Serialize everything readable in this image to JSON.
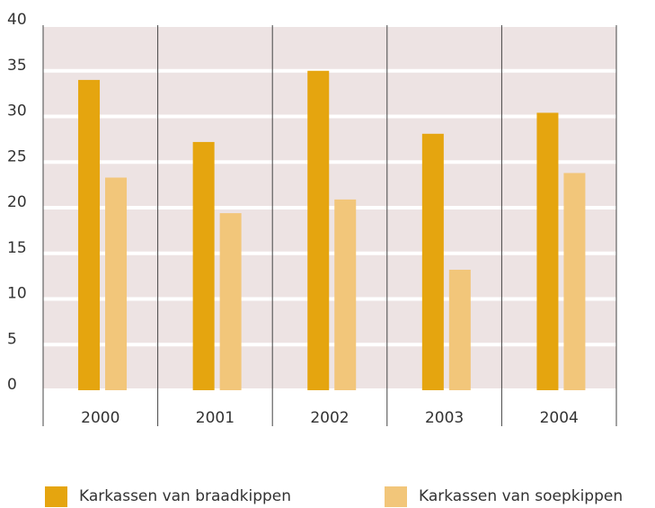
{
  "chart_data": {
    "type": "bar",
    "categories": [
      "2000",
      "2001",
      "2002",
      "2003",
      "2004"
    ],
    "series": [
      {
        "name": "Karkassen van braadkippen",
        "color": "#e5a50f",
        "values": [
          34,
          27.2,
          35,
          28.1,
          30.4
        ]
      },
      {
        "name": "Karkassen van soepkippen",
        "color": "#f2c67a",
        "values": [
          23.3,
          19.4,
          20.9,
          13.2,
          23.8
        ]
      }
    ],
    "ylim": [
      0,
      40
    ],
    "yticks": [
      0,
      5,
      10,
      15,
      20,
      25,
      30,
      35,
      40
    ],
    "grid": true,
    "legend": "bottom"
  }
}
